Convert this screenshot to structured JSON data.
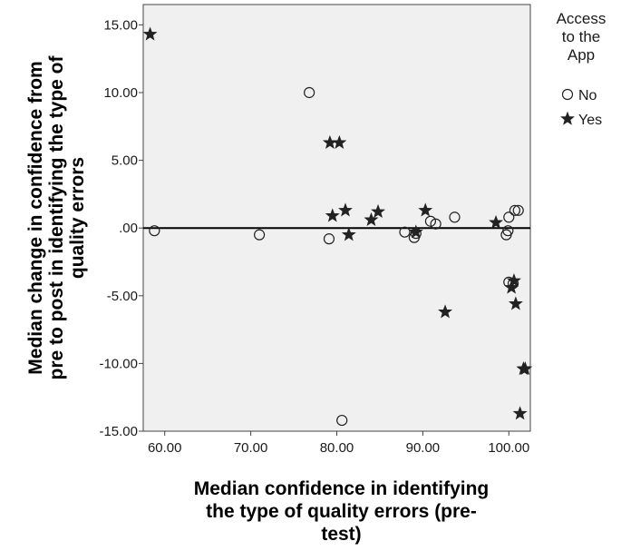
{
  "chart_data": {
    "type": "scatter",
    "xlabel": [
      "Median confidence in identifying",
      "the type of quality errors (pre-",
      "test)"
    ],
    "ylabel": [
      "Median change in confidence from",
      "pre to post in identifying the type of",
      "quality errors"
    ],
    "xlim": [
      57.5,
      102.5
    ],
    "ylim": [
      -15.0,
      16.5
    ],
    "xticks": [
      60,
      70,
      80,
      90,
      100
    ],
    "xtick_labels": [
      "60.00",
      "70.00",
      "80.00",
      "90.00",
      "100.00"
    ],
    "yticks": [
      15,
      10,
      5,
      0,
      -5,
      -10,
      -15
    ],
    "ytick_labels": [
      "15.00",
      "10.00",
      "5.00",
      ".00",
      "-5.00",
      "-10.00",
      "-15.00"
    ],
    "reference_line_y": 0,
    "grid": false,
    "legend": {
      "title": [
        "Access",
        "to the",
        "App"
      ],
      "placement": "right",
      "entries": [
        "No",
        "Yes"
      ]
    },
    "series": [
      {
        "name": "No",
        "marker": "circle",
        "points": [
          [
            58.8,
            -0.2
          ],
          [
            71.0,
            -0.5
          ],
          [
            76.8,
            10.0
          ],
          [
            79.1,
            -0.8
          ],
          [
            80.6,
            -14.2
          ],
          [
            87.9,
            -0.3
          ],
          [
            89.0,
            -0.7
          ],
          [
            89.2,
            -0.4
          ],
          [
            90.9,
            0.5
          ],
          [
            91.5,
            0.3
          ],
          [
            93.7,
            0.8
          ],
          [
            99.7,
            -0.5
          ],
          [
            99.9,
            -0.2
          ],
          [
            100.0,
            -4.0
          ],
          [
            100.0,
            0.8
          ],
          [
            100.5,
            -4.1
          ],
          [
            100.7,
            1.3
          ],
          [
            101.1,
            1.3
          ]
        ]
      },
      {
        "name": "Yes",
        "marker": "star",
        "points": [
          [
            58.3,
            14.3
          ],
          [
            79.2,
            6.3
          ],
          [
            80.3,
            6.3
          ],
          [
            79.5,
            0.9
          ],
          [
            81.0,
            1.3
          ],
          [
            81.4,
            -0.5
          ],
          [
            84.0,
            0.6
          ],
          [
            84.8,
            1.2
          ],
          [
            89.2,
            -0.3
          ],
          [
            90.3,
            1.3
          ],
          [
            92.6,
            -6.2
          ],
          [
            98.5,
            0.4
          ],
          [
            100.3,
            -4.4
          ],
          [
            100.6,
            -3.9
          ],
          [
            100.8,
            -5.6
          ],
          [
            101.7,
            -10.4
          ],
          [
            101.9,
            -10.4
          ],
          [
            101.3,
            -13.7
          ]
        ]
      }
    ]
  }
}
